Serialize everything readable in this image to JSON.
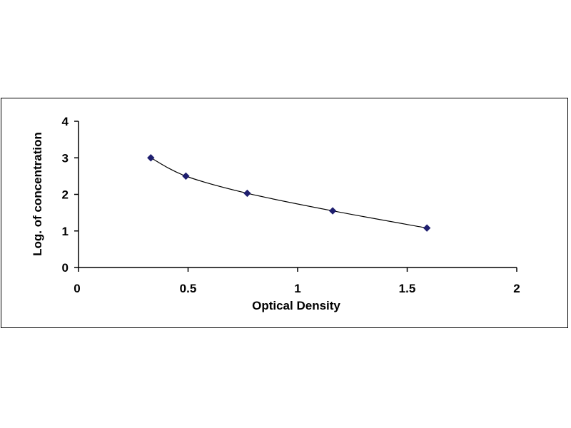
{
  "chart_data": {
    "type": "scatter",
    "xlabel": "Optical Density",
    "ylabel": "Log. of concentration",
    "xlim": [
      0,
      2
    ],
    "ylim": [
      0,
      4
    ],
    "x_ticks": [
      "0",
      "0.5",
      "1",
      "1.5",
      "2"
    ],
    "y_ticks": [
      "0",
      "1",
      "2",
      "3",
      "4"
    ],
    "grid": false,
    "legend": "none",
    "trendline": "smooth curve through points",
    "series": [
      {
        "points": [
          {
            "x": 0.33,
            "y": 3.0
          },
          {
            "x": 0.49,
            "y": 2.5
          },
          {
            "x": 0.77,
            "y": 2.03
          },
          {
            "x": 1.16,
            "y": 1.55
          },
          {
            "x": 1.59,
            "y": 1.08
          }
        ],
        "marker": "diamond",
        "color": "#1F1F6F"
      }
    ],
    "line_color": "#000000"
  }
}
